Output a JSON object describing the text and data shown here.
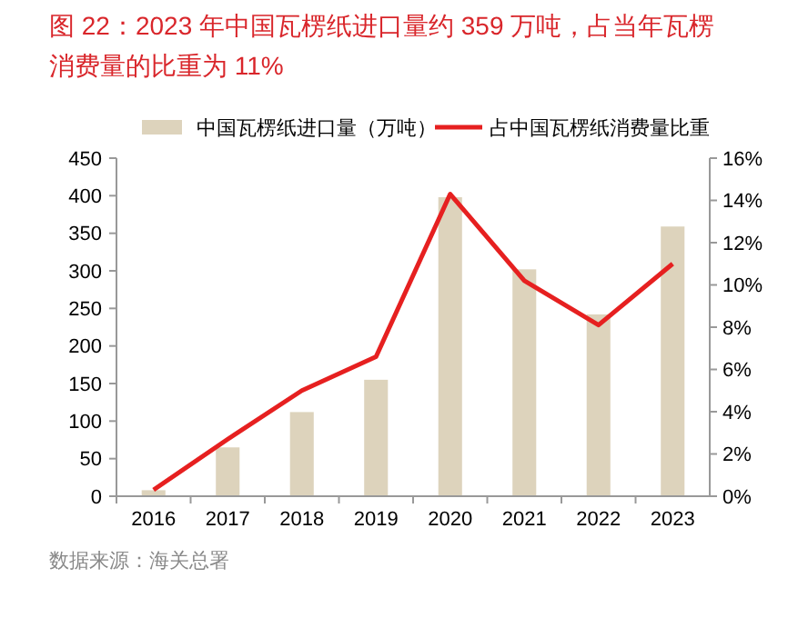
{
  "chart_data": {
    "type": "bar",
    "title": "图 22：2023 年中国瓦楞纸进口量约 359 万吨，占当年瓦楞消费量的比重为 11%",
    "categories": [
      "2016",
      "2017",
      "2018",
      "2019",
      "2020",
      "2021",
      "2022",
      "2023"
    ],
    "series": [
      {
        "name": "中国瓦楞纸进口量（万吨）",
        "color": "#ddd3bc",
        "values": [
          8,
          65,
          112,
          155,
          398,
          302,
          242,
          359
        ]
      },
      {
        "name": "占中国瓦楞纸消费量比重",
        "type": "line",
        "axis": "y2",
        "color": "#e62020",
        "values": [
          0.3,
          2.7,
          5.0,
          6.6,
          14.3,
          10.2,
          8.1,
          11.0
        ]
      }
    ],
    "ylim": [
      0,
      450
    ],
    "yticks": [
      0,
      50,
      100,
      150,
      200,
      250,
      300,
      350,
      400,
      450
    ],
    "y2lim": [
      0,
      16
    ],
    "y2ticks": [
      {
        "value": 0,
        "label": "0%"
      },
      {
        "value": 2,
        "label": "2%"
      },
      {
        "value": 4,
        "label": "4%"
      },
      {
        "value": 6,
        "label": "6%"
      },
      {
        "value": 8,
        "label": "8%"
      },
      {
        "value": 10,
        "label": "10%"
      },
      {
        "value": 12,
        "label": "12%"
      },
      {
        "value": 14,
        "label": "14%"
      },
      {
        "value": 16,
        "label": "16%"
      }
    ],
    "legend": "top",
    "grid": false,
    "marker": "none",
    "line_style": "solid",
    "annotations": [
      "数据来源：海关总署"
    ]
  }
}
